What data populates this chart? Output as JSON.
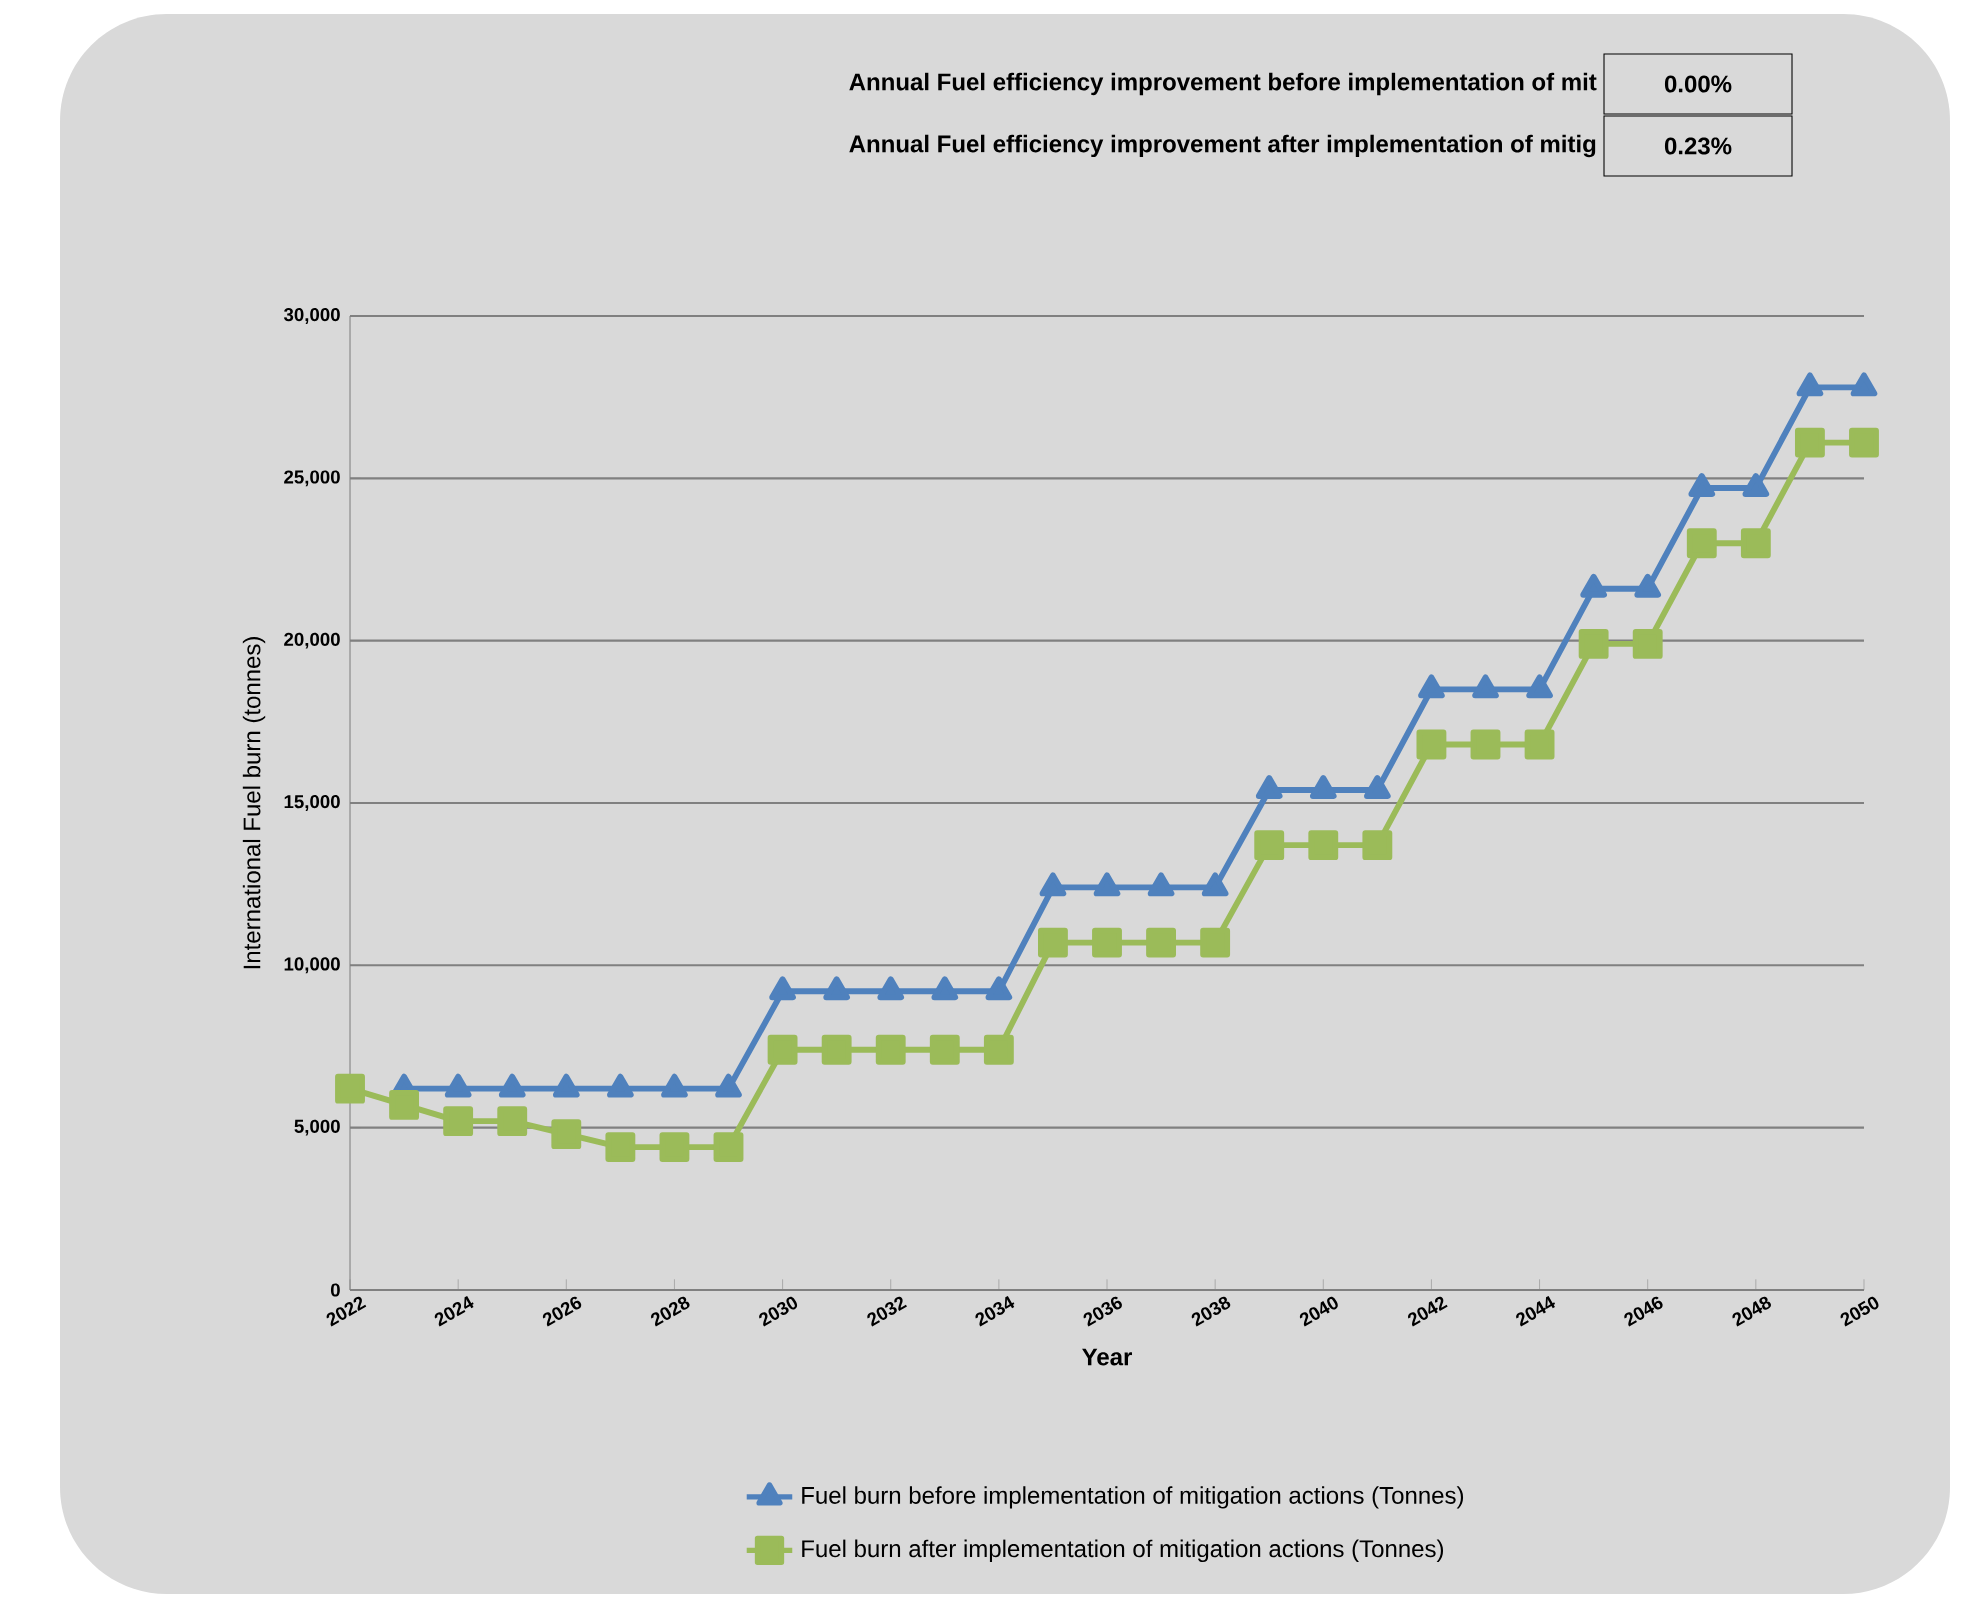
{
  "chart_data": {
    "type": "line",
    "annotations": [
      "Annual Fuel efficiency improvement before implementation of mit",
      "0.00%",
      "Annual Fuel efficiency improvement after implementation of mitig",
      "0.23%"
    ],
    "xlabel": "Year",
    "ylabel": "International Fuel burn (tonnes)",
    "x": [
      2022,
      2023,
      2024,
      2025,
      2026,
      2027,
      2028,
      2029,
      2030,
      2031,
      2032,
      2033,
      2034,
      2035,
      2036,
      2037,
      2038,
      2039,
      2040,
      2041,
      2042,
      2043,
      2044,
      2045,
      2046,
      2047,
      2048,
      2049,
      2050
    ],
    "series": [
      {
        "name": "Fuel burn before implementation of mitigation actions (Tonnes)",
        "color": "#4f81bd",
        "marker": "triangle",
        "values": [
          null,
          6200,
          6200,
          6200,
          6200,
          6200,
          6200,
          6200,
          9200,
          9200,
          9200,
          9200,
          9200,
          12400,
          12400,
          12400,
          12400,
          15400,
          15400,
          15400,
          18500,
          18500,
          18500,
          21600,
          21600,
          24700,
          24700,
          27800,
          27800
        ]
      },
      {
        "name": "Fuel burn after implementation of mitigation actions (Tonnes)",
        "color": "#9bbb59",
        "marker": "square",
        "values": [
          6200,
          5700,
          5200,
          5200,
          4800,
          4400,
          4400,
          4400,
          7400,
          7400,
          7400,
          7400,
          7400,
          10700,
          10700,
          10700,
          10700,
          13700,
          13700,
          13700,
          16800,
          16800,
          16800,
          19900,
          19900,
          23000,
          23000,
          26100,
          26100
        ]
      }
    ],
    "xlim": [
      2022,
      2050
    ],
    "xticks": [
      2022,
      2024,
      2026,
      2028,
      2030,
      2032,
      2034,
      2036,
      2038,
      2040,
      2042,
      2044,
      2046,
      2048,
      2050
    ],
    "ylim": [
      0,
      30000
    ],
    "yticks": [
      {
        "value": 0,
        "label": "0"
      },
      {
        "value": 5000,
        "label": "5,000"
      },
      {
        "value": 10000,
        "label": "10,000"
      },
      {
        "value": 15000,
        "label": "15,000"
      },
      {
        "value": 20000,
        "label": "20,000"
      },
      {
        "value": 25000,
        "label": "25,000"
      },
      {
        "value": 30000,
        "label": "30,000"
      }
    ],
    "grid": "y",
    "legend": "bottom",
    "line_style": "solid"
  }
}
